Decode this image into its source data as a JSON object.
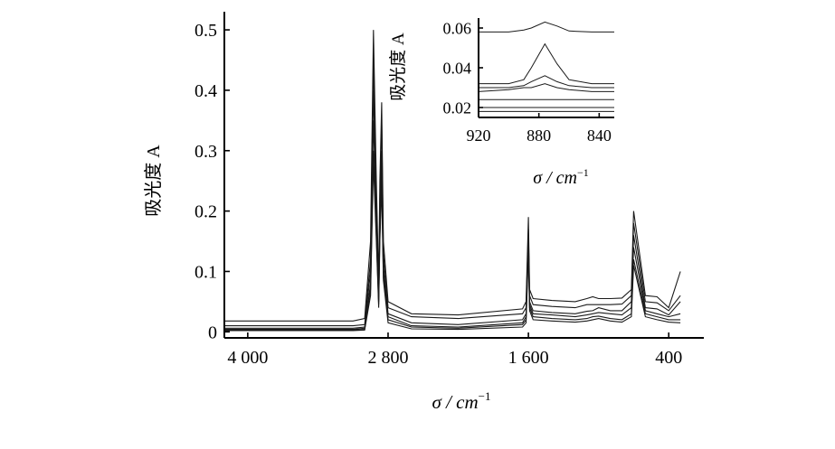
{
  "chart_data": [
    {
      "type": "line",
      "title": "",
      "xlabel": "σ / cm",
      "xlabel_sup": "−1",
      "ylabel": "吸光度 A",
      "xlim": [
        4200,
        100
      ],
      "ylim": [
        -0.01,
        0.53
      ],
      "x_ticks": [
        4000,
        2800,
        1600,
        400
      ],
      "x_tick_labels": [
        "4 000",
        "2 800",
        "1 600",
        "400"
      ],
      "y_ticks": [
        0,
        0.1,
        0.2,
        0.3,
        0.4,
        0.5
      ],
      "y_tick_labels": [
        "0",
        "0.1",
        "0.2",
        "0.3",
        "0.4",
        "0.5"
      ],
      "grid": false,
      "series": [
        {
          "x": [
            4200,
            3100,
            3000,
            2950,
            2925,
            2900,
            2880,
            2870,
            2855,
            2840,
            2800,
            2600,
            2200,
            1650,
            1620,
            1600,
            1590,
            1560,
            1400,
            1200,
            1100,
            1050,
            1000,
            900,
            800,
            720,
            700,
            600,
            500,
            400,
            300
          ],
          "y": [
            0.018,
            0.018,
            0.022,
            0.15,
            0.5,
            0.25,
            0.08,
            0.25,
            0.38,
            0.15,
            0.05,
            0.03,
            0.028,
            0.038,
            0.05,
            0.19,
            0.07,
            0.055,
            0.052,
            0.05,
            0.055,
            0.058,
            0.055,
            0.055,
            0.056,
            0.07,
            0.2,
            0.06,
            0.058,
            0.04,
            0.1
          ]
        },
        {
          "x": [
            4200,
            3100,
            3000,
            2950,
            2925,
            2900,
            2880,
            2870,
            2855,
            2840,
            2800,
            2600,
            2200,
            1650,
            1620,
            1600,
            1590,
            1560,
            1400,
            1200,
            1100,
            1050,
            1000,
            900,
            800,
            720,
            700,
            600,
            500,
            400,
            300
          ],
          "y": [
            0.01,
            0.01,
            0.012,
            0.12,
            0.45,
            0.22,
            0.07,
            0.22,
            0.35,
            0.13,
            0.04,
            0.025,
            0.022,
            0.03,
            0.04,
            0.17,
            0.06,
            0.045,
            0.042,
            0.04,
            0.045,
            0.045,
            0.045,
            0.045,
            0.046,
            0.06,
            0.18,
            0.05,
            0.048,
            0.035,
            0.06
          ]
        },
        {
          "x": [
            4200,
            3100,
            3000,
            2950,
            2925,
            2900,
            2880,
            2870,
            2855,
            2840,
            2800,
            2600,
            2200,
            1650,
            1620,
            1600,
            1590,
            1560,
            1400,
            1200,
            1100,
            1050,
            1000,
            900,
            800,
            720,
            700,
            600,
            500,
            400,
            300
          ],
          "y": [
            0.006,
            0.006,
            0.008,
            0.1,
            0.4,
            0.2,
            0.06,
            0.2,
            0.3,
            0.11,
            0.03,
            0.015,
            0.012,
            0.02,
            0.03,
            0.16,
            0.05,
            0.035,
            0.032,
            0.03,
            0.034,
            0.035,
            0.04,
            0.035,
            0.035,
            0.05,
            0.16,
            0.04,
            0.038,
            0.028,
            0.05
          ]
        },
        {
          "x": [
            4200,
            3100,
            3000,
            2950,
            2925,
            2900,
            2880,
            2870,
            2855,
            2840,
            2800,
            2600,
            2200,
            1650,
            1620,
            1600,
            1590,
            1560,
            1400,
            1200,
            1100,
            1050,
            1000,
            900,
            800,
            720,
            700,
            600,
            500,
            400,
            300
          ],
          "y": [
            0.004,
            0.004,
            0.006,
            0.08,
            0.35,
            0.18,
            0.05,
            0.18,
            0.28,
            0.1,
            0.025,
            0.01,
            0.008,
            0.015,
            0.025,
            0.15,
            0.045,
            0.03,
            0.028,
            0.025,
            0.028,
            0.03,
            0.032,
            0.03,
            0.028,
            0.04,
            0.14,
            0.035,
            0.03,
            0.025,
            0.03
          ]
        },
        {
          "x": [
            4200,
            3100,
            3000,
            2950,
            2925,
            2900,
            2880,
            2870,
            2855,
            2840,
            2800,
            2600,
            2200,
            1650,
            1620,
            1600,
            1590,
            1560,
            1400,
            1200,
            1100,
            1050,
            1000,
            900,
            800,
            720,
            700,
            600,
            500,
            400,
            300
          ],
          "y": [
            0.003,
            0.003,
            0.004,
            0.07,
            0.3,
            0.16,
            0.045,
            0.16,
            0.25,
            0.09,
            0.02,
            0.008,
            0.006,
            0.012,
            0.02,
            0.14,
            0.04,
            0.025,
            0.022,
            0.02,
            0.022,
            0.025,
            0.026,
            0.022,
            0.02,
            0.03,
            0.12,
            0.03,
            0.025,
            0.02,
            0.02
          ]
        },
        {
          "x": [
            4200,
            3100,
            3000,
            2950,
            2925,
            2900,
            2880,
            2870,
            2855,
            2840,
            2800,
            2600,
            2200,
            1650,
            1620,
            1600,
            1590,
            1560,
            1400,
            1200,
            1100,
            1050,
            1000,
            900,
            800,
            720,
            700,
            600,
            500,
            400,
            300
          ],
          "y": [
            0.002,
            0.002,
            0.003,
            0.06,
            0.28,
            0.15,
            0.04,
            0.15,
            0.24,
            0.085,
            0.015,
            0.005,
            0.004,
            0.008,
            0.015,
            0.13,
            0.035,
            0.02,
            0.018,
            0.016,
            0.018,
            0.02,
            0.022,
            0.018,
            0.016,
            0.025,
            0.11,
            0.025,
            0.02,
            0.016,
            0.015
          ]
        }
      ]
    },
    {
      "type": "line",
      "title": "",
      "xlabel": "σ / cm",
      "xlabel_sup": "−1",
      "ylabel": "吸光度 A",
      "xlim": [
        920,
        830
      ],
      "ylim": [
        0.015,
        0.065
      ],
      "x_ticks": [
        920,
        880,
        840
      ],
      "x_tick_labels": [
        "920",
        "880",
        "840"
      ],
      "y_ticks": [
        0.02,
        0.04,
        0.06
      ],
      "y_tick_labels": [
        "0.02",
        "0.04",
        "0.06"
      ],
      "grid": false,
      "series": [
        {
          "x": [
            920,
            900,
            890,
            885,
            876,
            868,
            860,
            845,
            830
          ],
          "y": [
            0.058,
            0.058,
            0.059,
            0.06,
            0.063,
            0.061,
            0.0585,
            0.058,
            0.058
          ]
        },
        {
          "x": [
            920,
            900,
            890,
            885,
            876,
            868,
            860,
            845,
            830
          ],
          "y": [
            0.032,
            0.032,
            0.034,
            0.04,
            0.052,
            0.042,
            0.034,
            0.032,
            0.032
          ]
        },
        {
          "x": [
            920,
            900,
            890,
            885,
            876,
            868,
            860,
            845,
            830
          ],
          "y": [
            0.03,
            0.03,
            0.031,
            0.033,
            0.036,
            0.033,
            0.031,
            0.03,
            0.03
          ]
        },
        {
          "x": [
            920,
            900,
            890,
            885,
            876,
            868,
            860,
            845,
            830
          ],
          "y": [
            0.028,
            0.029,
            0.03,
            0.03,
            0.032,
            0.03,
            0.029,
            0.028,
            0.028
          ]
        },
        {
          "x": [
            920,
            900,
            890,
            885,
            876,
            868,
            860,
            845,
            830
          ],
          "y": [
            0.024,
            0.024,
            0.024,
            0.024,
            0.024,
            0.024,
            0.024,
            0.024,
            0.024
          ]
        },
        {
          "x": [
            920,
            900,
            890,
            885,
            876,
            868,
            860,
            845,
            830
          ],
          "y": [
            0.02,
            0.02,
            0.02,
            0.02,
            0.02,
            0.02,
            0.02,
            0.02,
            0.02
          ]
        },
        {
          "x": [
            920,
            900,
            890,
            885,
            876,
            868,
            860,
            845,
            830
          ],
          "y": [
            0.018,
            0.018,
            0.018,
            0.018,
            0.018,
            0.018,
            0.018,
            0.018,
            0.018
          ]
        }
      ]
    }
  ]
}
